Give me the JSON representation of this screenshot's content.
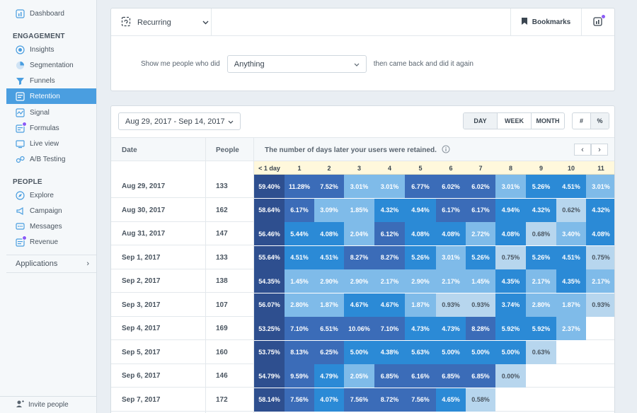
{
  "sidebar": {
    "dashboard": "Dashboard",
    "engagement_title": "ENGAGEMENT",
    "engagement": [
      "Insights",
      "Segmentation",
      "Funnels",
      "Retention",
      "Signal",
      "Formulas",
      "Live view",
      "A/B Testing"
    ],
    "people_title": "PEOPLE",
    "people": [
      "Explore",
      "Campaign",
      "Messages",
      "Revenue"
    ],
    "applications": "Applications",
    "invite": "Invite people"
  },
  "query": {
    "mode": "Recurring",
    "bookmarks": "Bookmarks",
    "prefix": "Show me people who did",
    "event": "Anything",
    "suffix": "then came back and did it again"
  },
  "controls": {
    "date_range": "Aug 29, 2017 - Sep 14, 2017",
    "units": [
      "DAY",
      "WEEK",
      "MONTH"
    ],
    "formats": [
      "#",
      "%"
    ]
  },
  "table": {
    "col_date": "Date",
    "col_people": "People",
    "col_desc": "The number of days later your users were retained.",
    "days": [
      "< 1 day",
      "1",
      "2",
      "3",
      "4",
      "5",
      "6",
      "7",
      "8",
      "9",
      "10",
      "11"
    ],
    "rows": [
      {
        "date": "Aug 29, 2017",
        "people": "133",
        "cells": [
          "59.40%",
          "11.28%",
          "7.52%",
          "3.01%",
          "3.01%",
          "6.77%",
          "6.02%",
          "6.02%",
          "3.01%",
          "5.26%",
          "4.51%",
          "3.01%"
        ]
      },
      {
        "date": "Aug 30, 2017",
        "people": "162",
        "cells": [
          "58.64%",
          "6.17%",
          "3.09%",
          "1.85%",
          "4.32%",
          "4.94%",
          "6.17%",
          "6.17%",
          "4.94%",
          "4.32%",
          "0.62%",
          "4.32%"
        ]
      },
      {
        "date": "Aug 31, 2017",
        "people": "147",
        "cells": [
          "56.46%",
          "5.44%",
          "4.08%",
          "2.04%",
          "6.12%",
          "4.08%",
          "4.08%",
          "2.72%",
          "4.08%",
          "0.68%",
          "3.40%",
          "4.08%"
        ]
      },
      {
        "date": "Sep 1, 2017",
        "people": "133",
        "cells": [
          "55.64%",
          "4.51%",
          "4.51%",
          "8.27%",
          "8.27%",
          "5.26%",
          "3.01%",
          "5.26%",
          "0.75%",
          "5.26%",
          "4.51%",
          "0.75%"
        ]
      },
      {
        "date": "Sep 2, 2017",
        "people": "138",
        "cells": [
          "54.35%",
          "1.45%",
          "2.90%",
          "2.90%",
          "2.17%",
          "2.90%",
          "2.17%",
          "1.45%",
          "4.35%",
          "2.17%",
          "4.35%",
          "2.17%"
        ]
      },
      {
        "date": "Sep 3, 2017",
        "people": "107",
        "cells": [
          "56.07%",
          "2.80%",
          "1.87%",
          "4.67%",
          "4.67%",
          "1.87%",
          "0.93%",
          "0.93%",
          "3.74%",
          "2.80%",
          "1.87%",
          "0.93%"
        ]
      },
      {
        "date": "Sep 4, 2017",
        "people": "169",
        "cells": [
          "53.25%",
          "7.10%",
          "6.51%",
          "10.06%",
          "7.10%",
          "4.73%",
          "4.73%",
          "8.28%",
          "5.92%",
          "5.92%",
          "2.37%",
          ""
        ]
      },
      {
        "date": "Sep 5, 2017",
        "people": "160",
        "cells": [
          "53.75%",
          "8.13%",
          "6.25%",
          "5.00%",
          "4.38%",
          "5.63%",
          "5.00%",
          "5.00%",
          "5.00%",
          "0.63%",
          "",
          ""
        ]
      },
      {
        "date": "Sep 6, 2017",
        "people": "146",
        "cells": [
          "54.79%",
          "9.59%",
          "4.79%",
          "2.05%",
          "6.85%",
          "6.16%",
          "6.85%",
          "6.85%",
          "0.00%",
          "",
          "",
          ""
        ]
      },
      {
        "date": "Sep 7, 2017",
        "people": "172",
        "cells": [
          "58.14%",
          "7.56%",
          "4.07%",
          "7.56%",
          "8.72%",
          "7.56%",
          "4.65%",
          "0.58%",
          "",
          "",
          "",
          ""
        ]
      }
    ]
  },
  "colors": {
    "accent": "#4a9ee0",
    "dark": "#2e4f8f",
    "strong": "#3b6cb8",
    "mid": "#2b8ad6",
    "light": "#7fbbe9",
    "pale": "#b7d6ee",
    "day_header_bg": "#fff8dc"
  }
}
